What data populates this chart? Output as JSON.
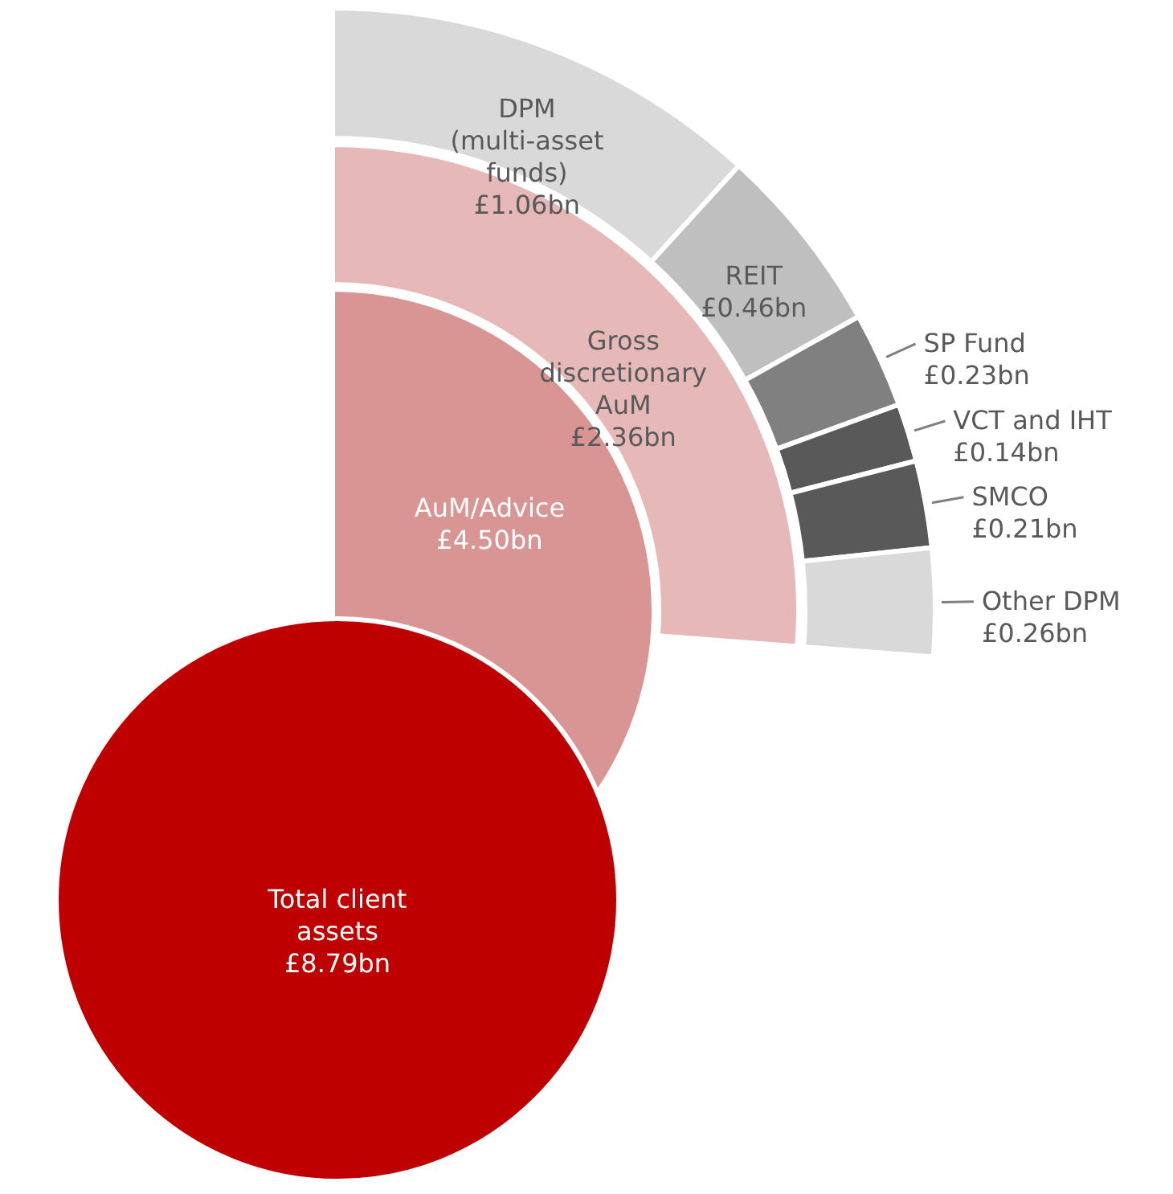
{
  "chart_data": {
    "type": "other",
    "categories": [
      "Total client assets",
      "AuM/Advice",
      "Gross discretionary AuM",
      "DPM (multi-asset funds)",
      "REIT",
      "SP Fund",
      "VCT and IHT",
      "SMCO",
      "Other DPM"
    ],
    "series": [
      {
        "values": [
          8.79,
          null,
          null,
          null,
          null,
          null,
          null,
          null,
          null
        ],
        "value_labels": [
          "£8.79bn",
          null,
          null,
          null,
          null,
          null,
          null,
          null,
          null
        ]
      },
      {
        "values": [
          null,
          4.5,
          null,
          null,
          null,
          null,
          null,
          null,
          null
        ],
        "value_labels": [
          null,
          "£4.50bn",
          null,
          null,
          null,
          null,
          null,
          null,
          null
        ]
      },
      {
        "values": [
          null,
          null,
          2.36,
          null,
          null,
          null,
          null,
          null,
          null
        ],
        "value_labels": [
          null,
          null,
          "£2.36bn",
          null,
          null,
          null,
          null,
          null,
          null
        ]
      },
      {
        "values": [
          null,
          null,
          null,
          1.06,
          0.46,
          0.23,
          0.14,
          0.21,
          0.26
        ],
        "value_labels": [
          null,
          null,
          null,
          "£1.06bn",
          "£0.46bn",
          "£0.23bn",
          "£0.14bn",
          "£0.21bn",
          "£0.26bn"
        ]
      }
    ],
    "colors": [
      "#be0000",
      "#d99594",
      "#e6b9b8",
      "#d9d9d9",
      "#bfbfbf",
      "#808080",
      "#595959",
      "#595959",
      "#d9d9d9"
    ]
  }
}
